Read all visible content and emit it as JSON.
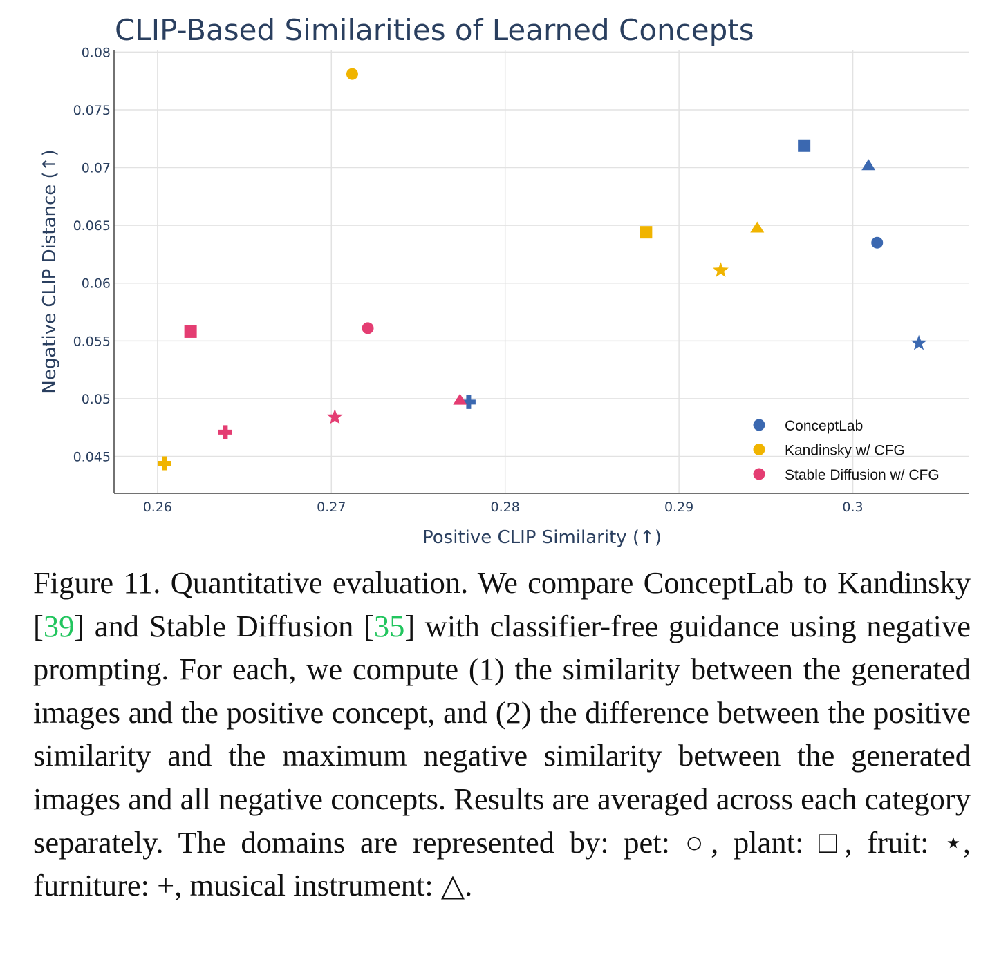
{
  "chart_data": {
    "type": "scatter",
    "title": "CLIP-Based Similarities of Learned Concepts",
    "xlabel": "Positive CLIP Similarity (↑)",
    "ylabel": "Negative CLIP Distance (↑)",
    "xlim": [
      0.2575,
      0.3067
    ],
    "ylim": [
      0.0418,
      0.0802
    ],
    "xticks": [
      0.26,
      0.27,
      0.28,
      0.29,
      0.3
    ],
    "xtick_labels": [
      "0.26",
      "0.27",
      "0.28",
      "0.29",
      "0.3"
    ],
    "yticks": [
      0.045,
      0.05,
      0.055,
      0.06,
      0.065,
      0.07,
      0.075,
      0.08
    ],
    "ytick_labels": [
      "0.045",
      "0.05",
      "0.055",
      "0.06",
      "0.065",
      "0.07",
      "0.075",
      "0.08"
    ],
    "grid": true,
    "legend_position": "bottom-right",
    "series": [
      {
        "name": "ConceptLab",
        "color": "#3b68b0",
        "points": [
          {
            "shape": "circle",
            "x": 0.3014,
            "y": 0.0635
          },
          {
            "shape": "square",
            "x": 0.2972,
            "y": 0.0719
          },
          {
            "shape": "star",
            "x": 0.3038,
            "y": 0.0548
          },
          {
            "shape": "cross",
            "x": 0.2779,
            "y": 0.0497
          },
          {
            "shape": "triangle",
            "x": 0.3009,
            "y": 0.0702
          }
        ]
      },
      {
        "name": "Kandinsky w/ CFG",
        "color": "#f0b400",
        "points": [
          {
            "shape": "circle",
            "x": 0.2712,
            "y": 0.0781
          },
          {
            "shape": "square",
            "x": 0.2881,
            "y": 0.0644
          },
          {
            "shape": "star",
            "x": 0.2924,
            "y": 0.0611
          },
          {
            "shape": "cross",
            "x": 0.2604,
            "y": 0.0444
          },
          {
            "shape": "triangle",
            "x": 0.2945,
            "y": 0.0648
          }
        ]
      },
      {
        "name": "Stable Diffusion w/ CFG",
        "color": "#e43d72",
        "points": [
          {
            "shape": "circle",
            "x": 0.2721,
            "y": 0.0561
          },
          {
            "shape": "square",
            "x": 0.2619,
            "y": 0.0558
          },
          {
            "shape": "star",
            "x": 0.2702,
            "y": 0.0484
          },
          {
            "shape": "cross",
            "x": 0.2639,
            "y": 0.0471
          },
          {
            "shape": "triangle",
            "x": 0.2774,
            "y": 0.0499
          }
        ]
      }
    ]
  },
  "caption": {
    "part1": "Figure 11.  Quantitative evaluation.  We compare ConceptLab to Kandinsky [",
    "cite1": "39",
    "part2": "] and Stable Diffusion [",
    "cite2": "35",
    "part3": "] with classifier-free guidance using negative prompting.  For each, we compute (1) the similarity between the generated images and the positive concept, and (2) the difference between the positive similarity and the maximum negative similarity between the generated images and all negative concepts. Results are averaged across each category separately. The domains are represented by: pet: ○, plant: □, fruit: ⋆, furniture: +, musical instrument: △."
  }
}
